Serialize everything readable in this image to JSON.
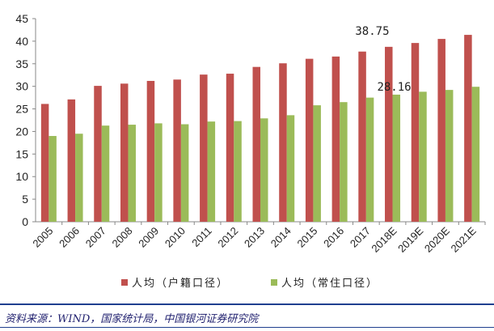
{
  "chart_data": {
    "type": "bar",
    "title": "",
    "xlabel": "",
    "ylabel": "",
    "ylim": [
      0,
      45
    ],
    "yticks": [
      0,
      5,
      10,
      15,
      20,
      25,
      30,
      35,
      40,
      45
    ],
    "grid": false,
    "legend_position": "bottom",
    "categories": [
      "2005",
      "2006",
      "2007",
      "2008",
      "2009",
      "2010",
      "2011",
      "2012",
      "2013",
      "2014",
      "2015",
      "2016",
      "2017",
      "2018E",
      "2019E",
      "2020E",
      "2021E"
    ],
    "series": [
      {
        "name": "人均（户籍口径）",
        "color": "#c0504d",
        "values": [
          26.1,
          27.1,
          30.1,
          30.6,
          31.2,
          31.5,
          32.6,
          32.8,
          34.3,
          35.1,
          36.1,
          36.6,
          37.7,
          38.75,
          39.6,
          40.5,
          41.4
        ]
      },
      {
        "name": "人均（常住口径）",
        "color": "#9bbb59",
        "values": [
          19.0,
          19.5,
          21.3,
          21.5,
          21.8,
          21.6,
          22.2,
          22.3,
          22.9,
          23.6,
          25.8,
          26.5,
          27.5,
          28.16,
          28.8,
          29.2,
          29.9
        ]
      }
    ],
    "annotations": [
      {
        "text": "38.75",
        "series": 0,
        "category": "2018E"
      },
      {
        "text": "28.16",
        "series": 1,
        "category": "2018E"
      }
    ]
  },
  "source_text": "资料来源：WIND，国家统计局，中国银河证券研究院"
}
